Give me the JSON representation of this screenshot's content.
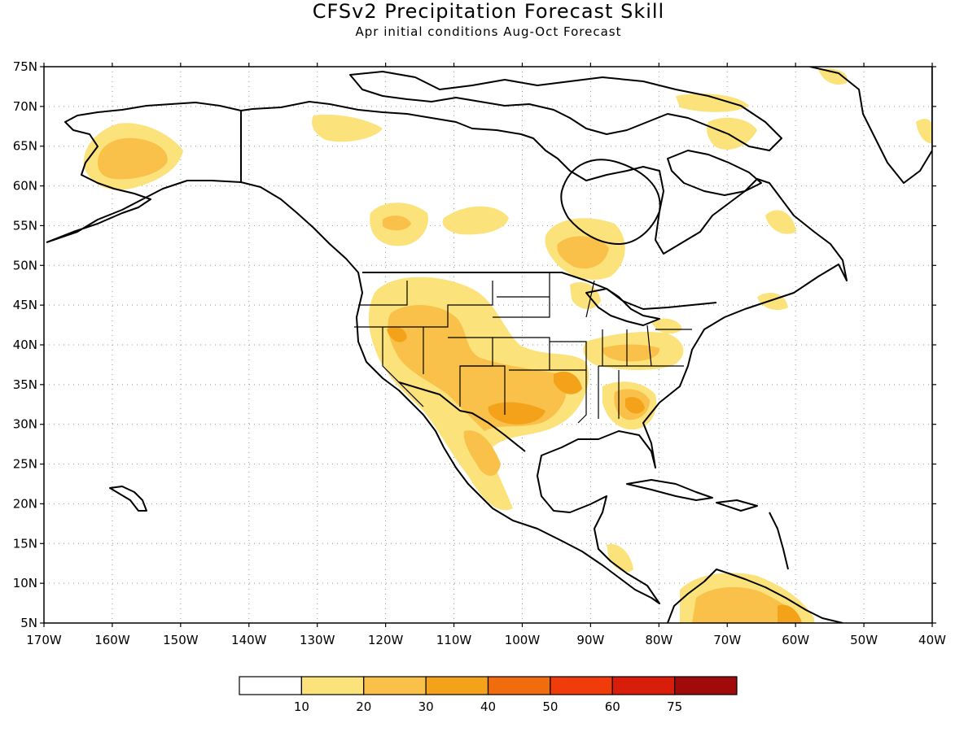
{
  "title": "CFSv2 Precipitation Forecast Skill",
  "subtitle": "Apr initial conditions  Aug-Oct Forecast",
  "map": {
    "lon_range": [
      -170,
      -40
    ],
    "lat_range": [
      5,
      75
    ],
    "lon_ticks": [
      "170W",
      "160W",
      "150W",
      "140W",
      "130W",
      "120W",
      "110W",
      "100W",
      "90W",
      "80W",
      "70W",
      "60W",
      "50W",
      "40W"
    ],
    "lat_ticks": [
      "75N",
      "70N",
      "65N",
      "60N",
      "55N",
      "50N",
      "45N",
      "40N",
      "35N",
      "30N",
      "25N",
      "20N",
      "15N",
      "10N",
      "5N"
    ],
    "gridlines": "dotted",
    "colors": {
      "land_outline": "#000000",
      "c10": "#fce27a",
      "c20": "#f9c04a",
      "c30": "#f5a21b",
      "c40": "#f06c0c"
    }
  },
  "colorbar": {
    "labels": [
      "10",
      "20",
      "30",
      "40",
      "50",
      "60",
      "75"
    ],
    "colors": [
      "#ffffff",
      "#fce27a",
      "#f9c04a",
      "#f5a21b",
      "#f06c0c",
      "#f03c0a",
      "#d81e0a",
      "#a00a0a"
    ]
  }
}
